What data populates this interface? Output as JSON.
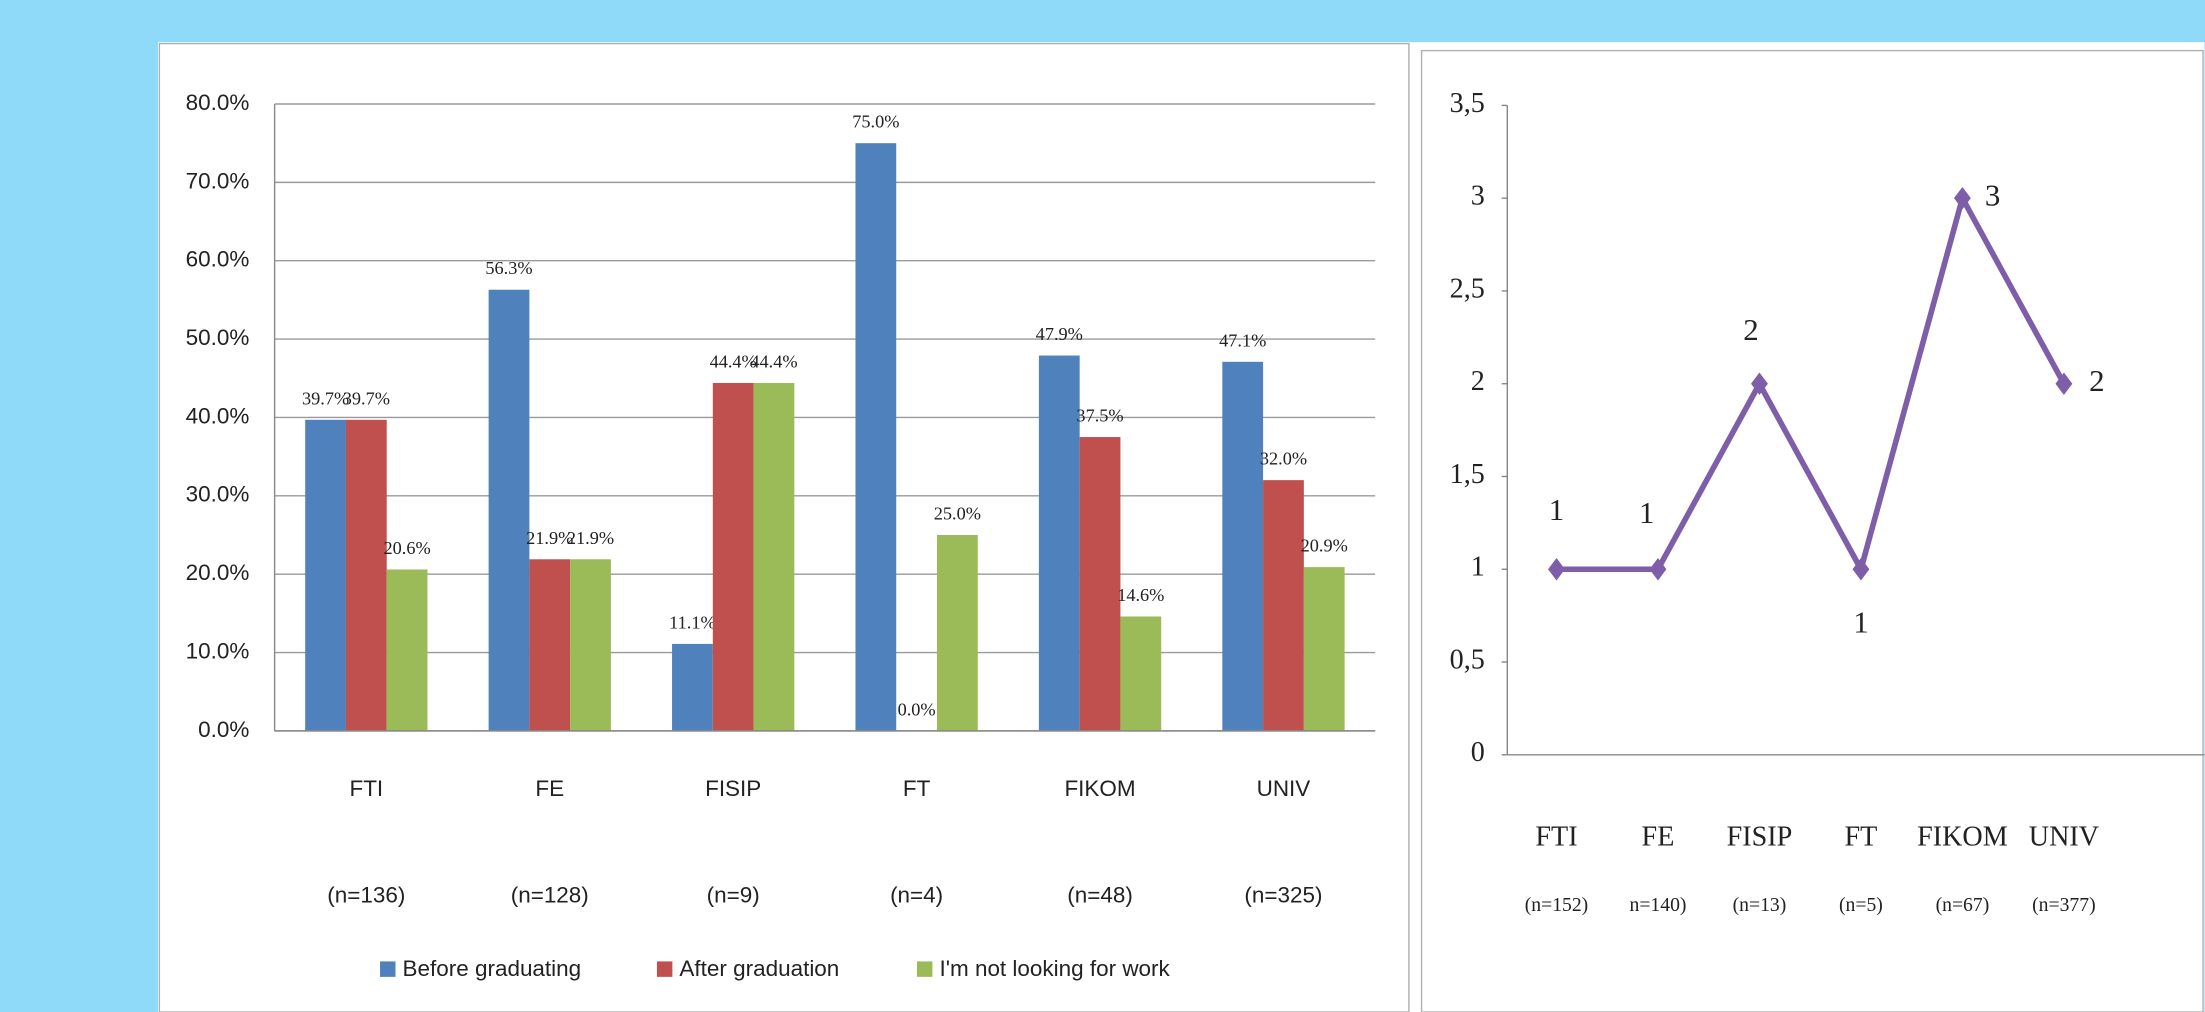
{
  "chart_data": [
    {
      "type": "bar",
      "categories": [
        "FTI",
        "FE",
        "FISIP",
        "FT",
        "FIKOM",
        "UNIV"
      ],
      "sample_sizes": [
        "(n=136)",
        "(n=128)",
        "(n=9)",
        "(n=4)",
        "(n=48)",
        "(n=325)"
      ],
      "series": [
        {
          "name": "Before graduating",
          "color": "#4f81bd",
          "values": [
            39.7,
            56.3,
            11.1,
            75.0,
            47.9,
            47.1
          ],
          "value_labels": [
            "39.7%",
            "56.3%",
            "11.1%",
            "75.0%",
            "47.9%",
            "47.1%"
          ]
        },
        {
          "name": "After graduation",
          "color": "#c0504d",
          "values": [
            39.7,
            21.9,
            44.4,
            0.0,
            37.5,
            32.0
          ],
          "value_labels": [
            "39.7%",
            "21.9%",
            "44.4%",
            "0.0%",
            "37.5%",
            "32.0%"
          ]
        },
        {
          "name": "I'm not looking for work",
          "color": "#9bbb59",
          "values": [
            20.6,
            21.9,
            44.4,
            25.0,
            14.6,
            20.9
          ],
          "value_labels": [
            "20.6%",
            "21.9%",
            "44.4%",
            "25.0%",
            "14.6%",
            "20.9%"
          ]
        }
      ],
      "ylim": [
        0,
        80
      ],
      "yticks": [
        {
          "value": 0,
          "label": "0.0%"
        },
        {
          "value": 10,
          "label": "10.0%"
        },
        {
          "value": 20,
          "label": "20.0%"
        },
        {
          "value": 30,
          "label": "30.0%"
        },
        {
          "value": 40,
          "label": "40.0%"
        },
        {
          "value": 50,
          "label": "50.0%"
        },
        {
          "value": 60,
          "label": "60.0%"
        },
        {
          "value": 70,
          "label": "70.0%"
        },
        {
          "value": 80,
          "label": "80.0%"
        }
      ],
      "grid": true,
      "legend": "bottom"
    },
    {
      "type": "line",
      "categories": [
        "FTI",
        "FE",
        "FISIP",
        "FT",
        "FIKOM",
        "UNIV"
      ],
      "sample_sizes": [
        "(n=152)",
        "n=140)",
        "(n=13)",
        "(n=5)",
        "(n=67)",
        "(n=377)"
      ],
      "color": "#7e5ea8",
      "values": [
        1,
        1,
        2,
        1,
        3,
        2
      ],
      "ylim": [
        0,
        3.5
      ],
      "yticks": [
        0,
        {
          "value": 0.5,
          "label": "0,5"
        },
        1,
        {
          "value": 1.5,
          "label": "1,5"
        },
        2,
        {
          "value": 2.5,
          "label": "2,5"
        },
        3,
        {
          "value": 3.5,
          "label": "3,5"
        }
      ],
      "grid": false
    }
  ]
}
